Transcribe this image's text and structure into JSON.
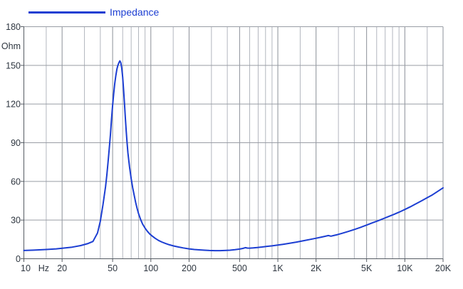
{
  "colors": {
    "curve": "#1c3ed2",
    "grid_major": "#8b9098",
    "grid_minor": "#b3b7bf",
    "grid_horizontal": "#999da5",
    "axis": "#555b63",
    "text": "#2e3640",
    "background": "#ffffff"
  },
  "chart_data": {
    "type": "line",
    "title": "",
    "legend": [
      {
        "label": "Impedance",
        "color": "#1c3ed2"
      }
    ],
    "x_axis": {
      "scale": "log",
      "min": 10,
      "max": 20000,
      "unit_label": "Hz",
      "tick_values": [
        10,
        20,
        50,
        100,
        200,
        500,
        1000,
        2000,
        5000,
        10000,
        20000
      ],
      "tick_labels": [
        "10",
        "20",
        "50",
        "100",
        "200",
        "500",
        "1K",
        "2K",
        "5K",
        "10K",
        "20K"
      ],
      "minor_gridlines": [
        15,
        30,
        40,
        60,
        70,
        80,
        90,
        150,
        300,
        400,
        600,
        700,
        800,
        900,
        1500,
        3000,
        4000,
        6000,
        7000,
        8000,
        9000,
        15000
      ]
    },
    "y_axis": {
      "scale": "linear",
      "min": 0,
      "max": 180,
      "unit_label": "Ohm",
      "tick_step": 30,
      "tick_values": [
        0,
        30,
        60,
        90,
        120,
        150,
        180
      ],
      "tick_labels": [
        "0",
        "30",
        "60",
        "90",
        "120",
        "150",
        "180"
      ]
    },
    "grid": "on",
    "legend_position": "top-left",
    "series": [
      {
        "name": "Impedance",
        "points": [
          [
            10,
            6.4
          ],
          [
            12,
            6.7
          ],
          [
            15,
            7.2
          ],
          [
            18,
            7.7
          ],
          [
            20,
            8.1
          ],
          [
            24,
            9.0
          ],
          [
            28,
            10.2
          ],
          [
            32,
            11.8
          ],
          [
            35,
            13.4
          ],
          [
            38,
            20.0
          ],
          [
            40,
            29.0
          ],
          [
            42,
            42.0
          ],
          [
            44,
            56.0
          ],
          [
            45,
            65.0
          ],
          [
            46,
            75.0
          ],
          [
            47,
            85.0
          ],
          [
            48,
            96.0
          ],
          [
            49,
            108.0
          ],
          [
            50,
            119.0
          ],
          [
            51,
            128.0
          ],
          [
            52,
            136.0
          ],
          [
            53,
            142.0
          ],
          [
            54,
            147.0
          ],
          [
            55,
            150.0
          ],
          [
            56,
            152.0
          ],
          [
            57,
            153.5
          ],
          [
            58,
            152.0
          ],
          [
            59,
            148.0
          ],
          [
            60,
            141.0
          ],
          [
            61,
            131.0
          ],
          [
            62,
            120.0
          ],
          [
            63,
            109.0
          ],
          [
            64,
            99.0
          ],
          [
            65,
            90.0
          ],
          [
            66,
            82.0
          ],
          [
            68,
            71.0
          ],
          [
            70,
            62.0
          ],
          [
            72,
            55.0
          ],
          [
            74,
            49.0
          ],
          [
            76,
            43.5
          ],
          [
            78,
            39.0
          ],
          [
            80,
            35.0
          ],
          [
            83,
            30.5
          ],
          [
            86,
            27.0
          ],
          [
            90,
            23.8
          ],
          [
            94,
            21.2
          ],
          [
            98,
            19.2
          ],
          [
            102,
            17.8
          ],
          [
            108,
            15.9
          ],
          [
            115,
            14.2
          ],
          [
            122,
            13.0
          ],
          [
            130,
            11.9
          ],
          [
            140,
            10.8
          ],
          [
            152,
            9.9
          ],
          [
            165,
            9.1
          ],
          [
            180,
            8.4
          ],
          [
            200,
            7.7
          ],
          [
            220,
            7.2
          ],
          [
            240,
            6.9
          ],
          [
            265,
            6.6
          ],
          [
            290,
            6.4
          ],
          [
            320,
            6.3
          ],
          [
            350,
            6.3
          ],
          [
            380,
            6.4
          ],
          [
            420,
            6.6
          ],
          [
            460,
            7.0
          ],
          [
            500,
            7.5
          ],
          [
            530,
            8.0
          ],
          [
            555,
            8.6
          ],
          [
            575,
            8.3
          ],
          [
            600,
            8.2
          ],
          [
            640,
            8.4
          ],
          [
            690,
            8.7
          ],
          [
            750,
            9.1
          ],
          [
            820,
            9.6
          ],
          [
            900,
            10.0
          ],
          [
            1000,
            10.6
          ],
          [
            1100,
            11.2
          ],
          [
            1250,
            12.1
          ],
          [
            1400,
            12.9
          ],
          [
            1600,
            14.0
          ],
          [
            1800,
            15.0
          ],
          [
            2000,
            15.9
          ],
          [
            2200,
            16.8
          ],
          [
            2350,
            17.4
          ],
          [
            2500,
            18.0
          ],
          [
            2620,
            17.5
          ],
          [
            2750,
            18.0
          ],
          [
            2950,
            18.7
          ],
          [
            3200,
            19.7
          ],
          [
            3600,
            21.2
          ],
          [
            4000,
            22.7
          ],
          [
            4500,
            24.4
          ],
          [
            5000,
            26.1
          ],
          [
            5600,
            28.0
          ],
          [
            6200,
            29.6
          ],
          [
            6800,
            31.2
          ],
          [
            7500,
            32.9
          ],
          [
            8200,
            34.4
          ],
          [
            9000,
            36.1
          ],
          [
            10000,
            38.2
          ],
          [
            11000,
            40.2
          ],
          [
            12000,
            42.2
          ],
          [
            13500,
            44.9
          ],
          [
            15000,
            47.3
          ],
          [
            16500,
            49.6
          ],
          [
            18000,
            52.0
          ],
          [
            20000,
            55.0
          ]
        ]
      }
    ]
  }
}
